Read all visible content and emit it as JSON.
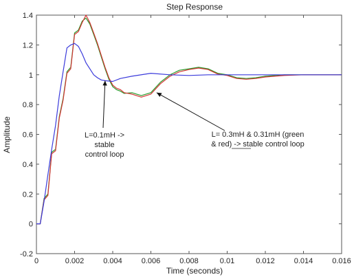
{
  "chart_data": {
    "type": "line",
    "title": "Step Response",
    "xlabel": "Time (seconds)",
    "ylabel": "Amplitude",
    "xlim": [
      0,
      0.016
    ],
    "ylim": [
      -0.2,
      1.4
    ],
    "grid": false,
    "x_ticks": [
      "0",
      "0.002",
      "0.004",
      "0.006",
      "0.008",
      "0.01",
      "0.012",
      "0.014",
      "0.016"
    ],
    "y_ticks": [
      "-0.2",
      "0",
      "0.2",
      "0.4",
      "0.6",
      "0.8",
      "1",
      "1.2",
      "1.4"
    ],
    "colors": {
      "series_0": "#3a3adb",
      "series_1": "#2a9a2a",
      "series_2": "#d33333"
    },
    "series": [
      {
        "points": [
          [
            0,
            0
          ],
          [
            0.0002,
            0
          ],
          [
            0.0004,
            0.15
          ],
          [
            0.0006,
            0.33
          ],
          [
            0.0008,
            0.5
          ],
          [
            0.001,
            0.66
          ],
          [
            0.0012,
            0.86
          ],
          [
            0.0014,
            1.02
          ],
          [
            0.0016,
            1.18
          ],
          [
            0.0018,
            1.2
          ],
          [
            0.002,
            1.21
          ],
          [
            0.0022,
            1.19
          ],
          [
            0.0024,
            1.14
          ],
          [
            0.0026,
            1.08
          ],
          [
            0.0028,
            1.04
          ],
          [
            0.003,
            1.0
          ],
          [
            0.0032,
            0.98
          ],
          [
            0.0034,
            0.965
          ],
          [
            0.0036,
            0.96
          ],
          [
            0.004,
            0.955
          ],
          [
            0.0044,
            0.975
          ],
          [
            0.005,
            0.99
          ],
          [
            0.006,
            1.01
          ],
          [
            0.007,
            1.0
          ],
          [
            0.008,
            0.995
          ],
          [
            0.009,
            1.0
          ],
          [
            0.01,
            1.0
          ],
          [
            0.012,
            1.0
          ],
          [
            0.014,
            1.0
          ],
          [
            0.016,
            1.0
          ]
        ]
      },
      {
        "points": [
          [
            0,
            0
          ],
          [
            0.0002,
            0
          ],
          [
            0.0004,
            0.17
          ],
          [
            0.0006,
            0.2
          ],
          [
            0.0008,
            0.48
          ],
          [
            0.001,
            0.5
          ],
          [
            0.0012,
            0.72
          ],
          [
            0.0014,
            0.84
          ],
          [
            0.0016,
            1.02
          ],
          [
            0.0018,
            1.05
          ],
          [
            0.002,
            1.28
          ],
          [
            0.0022,
            1.3
          ],
          [
            0.0024,
            1.36
          ],
          [
            0.0026,
            1.38
          ],
          [
            0.0028,
            1.34
          ],
          [
            0.003,
            1.27
          ],
          [
            0.0032,
            1.2
          ],
          [
            0.0034,
            1.12
          ],
          [
            0.0036,
            1.04
          ],
          [
            0.0038,
            0.97
          ],
          [
            0.004,
            0.92
          ],
          [
            0.0042,
            0.9
          ],
          [
            0.0044,
            0.89
          ],
          [
            0.0046,
            0.875
          ],
          [
            0.005,
            0.88
          ],
          [
            0.0055,
            0.86
          ],
          [
            0.006,
            0.88
          ],
          [
            0.0065,
            0.95
          ],
          [
            0.007,
            1.0
          ],
          [
            0.0075,
            1.03
          ],
          [
            0.008,
            1.04
          ],
          [
            0.0085,
            1.05
          ],
          [
            0.009,
            1.04
          ],
          [
            0.0095,
            1.01
          ],
          [
            0.01,
            1.0
          ],
          [
            0.0105,
            0.98
          ],
          [
            0.011,
            0.975
          ],
          [
            0.0115,
            0.98
          ],
          [
            0.012,
            0.99
          ],
          [
            0.013,
            1.0
          ],
          [
            0.014,
            1.0
          ],
          [
            0.015,
            1.0
          ],
          [
            0.016,
            1.0
          ]
        ]
      },
      {
        "points": [
          [
            0,
            0
          ],
          [
            0.0002,
            0
          ],
          [
            0.0004,
            0.16
          ],
          [
            0.0006,
            0.19
          ],
          [
            0.0008,
            0.47
          ],
          [
            0.001,
            0.49
          ],
          [
            0.0012,
            0.71
          ],
          [
            0.0014,
            0.83
          ],
          [
            0.0016,
            1.01
          ],
          [
            0.0018,
            1.04
          ],
          [
            0.002,
            1.27
          ],
          [
            0.0022,
            1.29
          ],
          [
            0.0024,
            1.35
          ],
          [
            0.0026,
            1.4
          ],
          [
            0.0028,
            1.35
          ],
          [
            0.003,
            1.28
          ],
          [
            0.0032,
            1.21
          ],
          [
            0.0034,
            1.13
          ],
          [
            0.0036,
            1.05
          ],
          [
            0.0038,
            0.98
          ],
          [
            0.004,
            0.93
          ],
          [
            0.0042,
            0.91
          ],
          [
            0.0044,
            0.9
          ],
          [
            0.0046,
            0.88
          ],
          [
            0.005,
            0.87
          ],
          [
            0.0055,
            0.85
          ],
          [
            0.006,
            0.87
          ],
          [
            0.0065,
            0.94
          ],
          [
            0.007,
            0.99
          ],
          [
            0.0075,
            1.02
          ],
          [
            0.008,
            1.035
          ],
          [
            0.0085,
            1.045
          ],
          [
            0.009,
            1.035
          ],
          [
            0.0095,
            1.005
          ],
          [
            0.01,
            0.995
          ],
          [
            0.0105,
            0.975
          ],
          [
            0.011,
            0.97
          ],
          [
            0.0115,
            0.975
          ],
          [
            0.012,
            0.985
          ],
          [
            0.013,
            0.995
          ],
          [
            0.014,
            1.0
          ],
          [
            0.015,
            1.0
          ],
          [
            0.016,
            1.0
          ]
        ]
      }
    ],
    "annotations": [
      {
        "lines": [
          "L=0.1mH ->",
          "stable",
          "control loop"
        ],
        "arrow_to": [
          0.0036,
          0.96
        ]
      },
      {
        "lines": [
          "L= 0.3mH & 0.31mH (green",
          "& red) -> stable control loop"
        ],
        "underline": "stable",
        "arrow_to": [
          0.0063,
          0.88
        ]
      }
    ]
  }
}
